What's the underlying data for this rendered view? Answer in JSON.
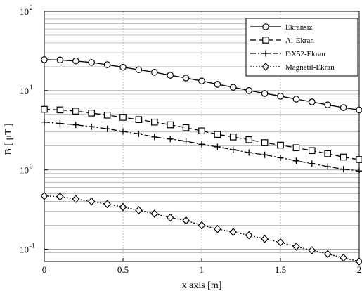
{
  "chart_data": {
    "type": "line",
    "title": "",
    "xlabel": "x axis [m]",
    "ylabel": "B [ μT ]",
    "xlim": [
      0,
      2
    ],
    "ylim": [
      0.07,
      100
    ],
    "yscale": "log",
    "grid": true,
    "legend_position": "top-right",
    "x": [
      0,
      0.1,
      0.2,
      0.3,
      0.4,
      0.5,
      0.6,
      0.7,
      0.8,
      0.9,
      1.0,
      1.1,
      1.2,
      1.3,
      1.4,
      1.5,
      1.6,
      1.7,
      1.8,
      1.9,
      2.0
    ],
    "x_ticks": [
      "0",
      "0.5",
      "1",
      "1.5",
      "2"
    ],
    "y_ticks": [
      {
        "base": "10",
        "exp": "-1"
      },
      {
        "base": "10",
        "exp": "0"
      },
      {
        "base": "10",
        "exp": "1"
      },
      {
        "base": "10",
        "exp": "2"
      }
    ],
    "series": [
      {
        "name": "Ekransiz",
        "dash": "",
        "marker": "circle",
        "values": [
          24.5,
          24.3,
          23.6,
          22.6,
          21.2,
          19.7,
          18.3,
          17.0,
          15.6,
          14.4,
          13.2,
          12.0,
          11.0,
          10.0,
          9.2,
          8.5,
          7.8,
          7.2,
          6.6,
          6.1,
          5.7
        ]
      },
      {
        "name": "Al-Ekran",
        "dash": "8,4",
        "marker": "square",
        "values": [
          5.8,
          5.7,
          5.5,
          5.2,
          4.9,
          4.6,
          4.3,
          4.0,
          3.7,
          3.4,
          3.1,
          2.8,
          2.6,
          2.4,
          2.2,
          2.05,
          1.9,
          1.75,
          1.6,
          1.45,
          1.35
        ]
      },
      {
        "name": "DX52-Ekran",
        "dash": "8,3,2,3",
        "marker": "plus",
        "values": [
          4.0,
          3.85,
          3.7,
          3.5,
          3.3,
          3.05,
          2.85,
          2.6,
          2.45,
          2.3,
          2.1,
          1.95,
          1.8,
          1.65,
          1.55,
          1.42,
          1.3,
          1.2,
          1.1,
          1.02,
          0.97
        ]
      },
      {
        "name": "Magnetil-Ekran",
        "dash": "2,2",
        "marker": "diamond",
        "values": [
          0.47,
          0.46,
          0.43,
          0.4,
          0.37,
          0.34,
          0.31,
          0.28,
          0.25,
          0.23,
          0.2,
          0.18,
          0.165,
          0.15,
          0.135,
          0.122,
          0.108,
          0.097,
          0.087,
          0.078,
          0.07
        ]
      }
    ]
  }
}
